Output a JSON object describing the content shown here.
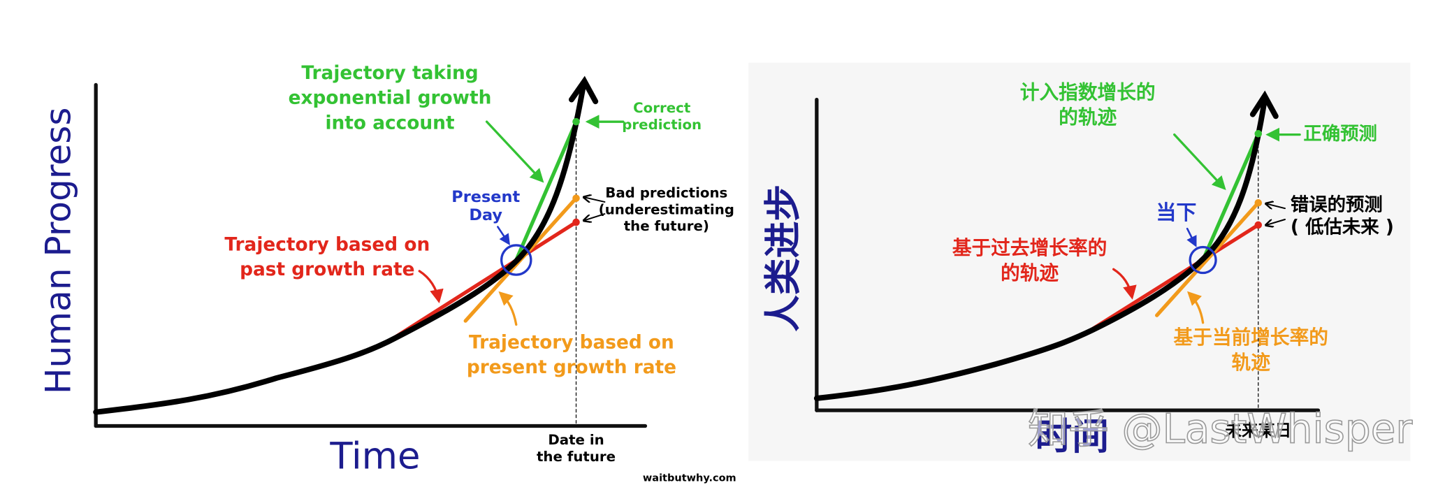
{
  "left": {
    "green": [
      "Trajectory taking",
      "exponential growth",
      "into account"
    ],
    "correct": [
      "Correct",
      "prediction"
    ],
    "present": [
      "Present",
      "Day"
    ],
    "bad": [
      "Bad predictions",
      "(underestimating",
      "the future)"
    ],
    "red": [
      "Trajectory based on",
      "past growth rate"
    ],
    "orange": [
      "Trajectory based on",
      "present growth rate"
    ],
    "y_label": "Human Progress",
    "x_label": "Time",
    "date": [
      "Date in",
      "the future"
    ],
    "credit": "waitbutwhy.com"
  },
  "right": {
    "green": [
      "计入指数增长的",
      "的轨迹"
    ],
    "correct": [
      "正确预测"
    ],
    "present": [
      "当下"
    ],
    "bad": [
      "错误的预测",
      "( 低估未来 )"
    ],
    "red": [
      "基于过去增长率的",
      "的轨迹"
    ],
    "orange": [
      "基于当前增长率的",
      "轨迹"
    ],
    "y_label": "人类进步",
    "x_label": "时间",
    "date": [
      "未来某日"
    ],
    "watermark": "知乎 @LastWhisper"
  }
}
